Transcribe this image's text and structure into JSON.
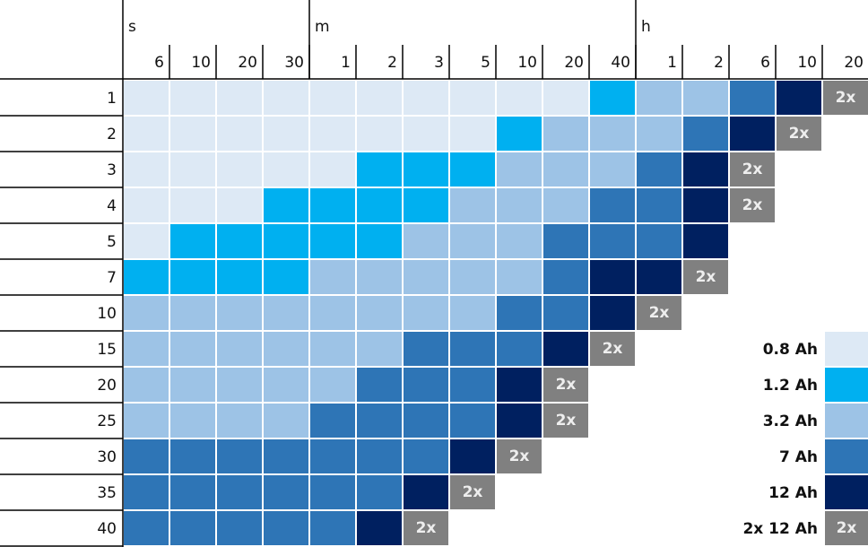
{
  "header": {
    "groups": [
      {
        "label": "s",
        "columns": [
          "6",
          "10",
          "20",
          "30"
        ]
      },
      {
        "label": "m",
        "columns": [
          "1",
          "2",
          "3",
          "5",
          "10",
          "20",
          "40"
        ]
      },
      {
        "label": "h",
        "columns": [
          "1",
          "2",
          "6",
          "10",
          "20"
        ]
      }
    ]
  },
  "legend": [
    {
      "label": "0.8 Ah",
      "color": "#dde9f5"
    },
    {
      "label": "1.2 Ah",
      "color": "#00b0f0"
    },
    {
      "label": "3.2 Ah",
      "color": "#9dc3e6"
    },
    {
      "label": "7 Ah",
      "color": "#2e75b6"
    },
    {
      "label": "12 Ah",
      "color": "#002060"
    },
    {
      "label": "2x 12 Ah",
      "badge": "2x",
      "color": "#808080"
    }
  ],
  "rows": [
    {
      "label": "1",
      "cells": [
        0,
        0,
        0,
        0,
        0,
        0,
        0,
        0,
        0,
        0,
        1,
        2,
        2,
        3,
        4,
        5
      ]
    },
    {
      "label": "2",
      "cells": [
        0,
        0,
        0,
        0,
        0,
        0,
        0,
        0,
        1,
        2,
        2,
        2,
        3,
        4,
        5,
        null
      ]
    },
    {
      "label": "3",
      "cells": [
        0,
        0,
        0,
        0,
        0,
        1,
        1,
        1,
        2,
        2,
        2,
        3,
        4,
        5,
        null,
        null
      ]
    },
    {
      "label": "4",
      "cells": [
        0,
        0,
        0,
        1,
        1,
        1,
        1,
        2,
        2,
        2,
        3,
        3,
        4,
        5,
        null,
        null
      ]
    },
    {
      "label": "5",
      "cells": [
        0,
        1,
        1,
        1,
        1,
        1,
        2,
        2,
        2,
        3,
        3,
        3,
        4,
        null,
        null,
        null
      ]
    },
    {
      "label": "7",
      "cells": [
        1,
        1,
        1,
        1,
        2,
        2,
        2,
        2,
        2,
        3,
        4,
        4,
        5,
        null,
        null,
        null
      ]
    },
    {
      "label": "10",
      "cells": [
        2,
        2,
        2,
        2,
        2,
        2,
        2,
        2,
        3,
        3,
        4,
        5,
        null,
        null,
        null,
        null
      ]
    },
    {
      "label": "15",
      "cells": [
        2,
        2,
        2,
        2,
        2,
        2,
        3,
        3,
        3,
        4,
        5,
        null,
        null,
        null,
        null,
        null
      ]
    },
    {
      "label": "20",
      "cells": [
        2,
        2,
        2,
        2,
        2,
        3,
        3,
        3,
        4,
        5,
        null,
        null,
        null,
        null,
        null,
        null
      ]
    },
    {
      "label": "25",
      "cells": [
        2,
        2,
        2,
        2,
        3,
        3,
        3,
        3,
        4,
        5,
        null,
        null,
        null,
        null,
        null,
        null
      ]
    },
    {
      "label": "30",
      "cells": [
        3,
        3,
        3,
        3,
        3,
        3,
        3,
        4,
        5,
        null,
        null,
        null,
        null,
        null,
        null,
        null
      ]
    },
    {
      "label": "35",
      "cells": [
        3,
        3,
        3,
        3,
        3,
        3,
        4,
        5,
        null,
        null,
        null,
        null,
        null,
        null,
        null,
        null
      ]
    },
    {
      "label": "40",
      "cells": [
        3,
        3,
        3,
        3,
        3,
        4,
        5,
        null,
        null,
        null,
        null,
        null,
        null,
        null,
        null,
        null
      ]
    }
  ]
}
